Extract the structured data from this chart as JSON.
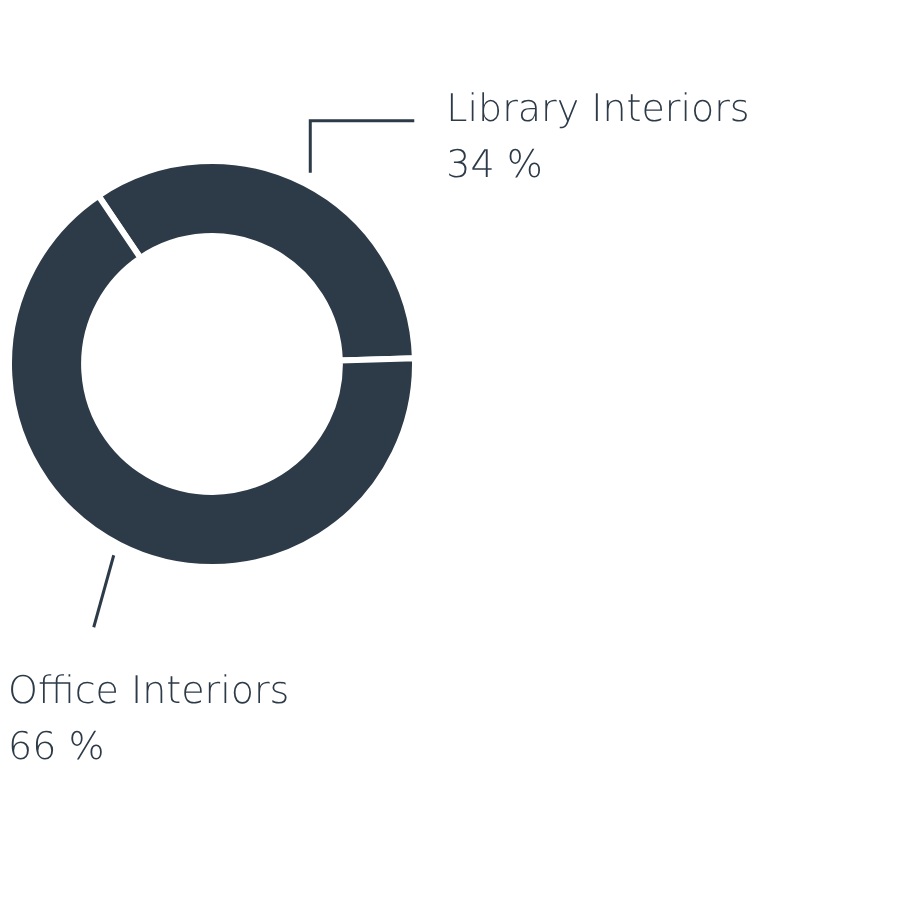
{
  "chart_data": {
    "type": "donut",
    "categories": [
      "Library Interiors",
      "Office Interiors"
    ],
    "values": [
      34,
      66
    ],
    "colors": [
      "#2d3a48",
      "#2d3a48"
    ],
    "value_labels": [
      "34 %",
      "66 %"
    ],
    "legend": false
  }
}
